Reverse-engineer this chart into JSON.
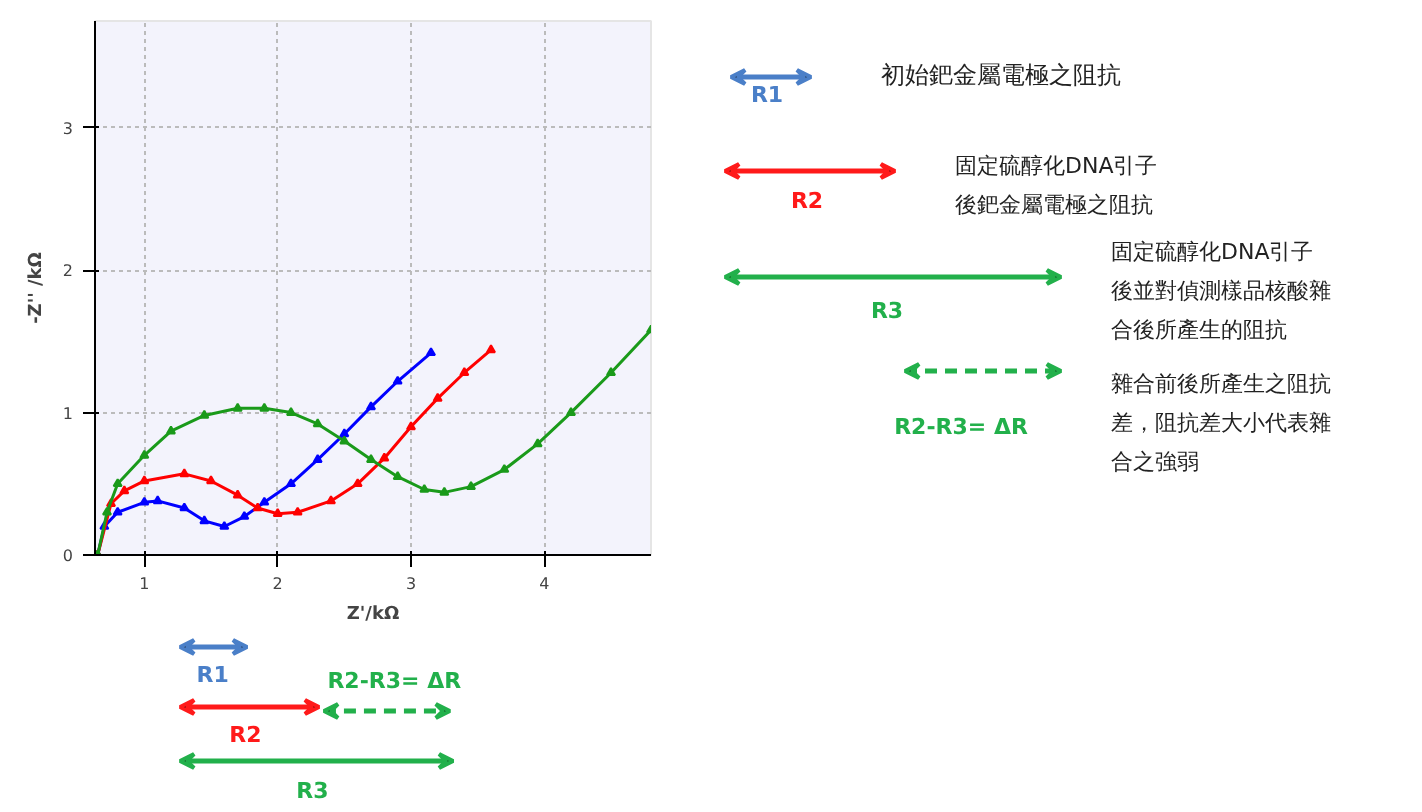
{
  "chart_data": {
    "type": "line",
    "xlabel": "Z'/kΩ",
    "ylabel": "-Z'' /kΩ",
    "xlim": [
      0.63,
      4.8
    ],
    "ylim": [
      0,
      3.75
    ],
    "xticks": [
      1,
      2,
      3,
      4
    ],
    "yticks": [
      0,
      1,
      2,
      3
    ],
    "grid": true,
    "marker": "triangle",
    "line_style": "solid",
    "series": [
      {
        "color": "#0000ff",
        "x": [
          0.65,
          0.7,
          0.8,
          1.0,
          1.1,
          1.3,
          1.45,
          1.6,
          1.75,
          1.9,
          2.1,
          2.3,
          2.5,
          2.7,
          2.9,
          3.15
        ],
        "values": [
          0,
          0.2,
          0.3,
          0.37,
          0.38,
          0.33,
          0.24,
          0.2,
          0.27,
          0.37,
          0.5,
          0.67,
          0.85,
          1.04,
          1.22,
          1.42
        ]
      },
      {
        "color": "#ff0000",
        "x": [
          0.65,
          0.75,
          0.85,
          1.0,
          1.3,
          1.5,
          1.7,
          1.85,
          2.0,
          2.15,
          2.4,
          2.6,
          2.8,
          3.0,
          3.2,
          3.4,
          3.6
        ],
        "values": [
          0,
          0.36,
          0.45,
          0.52,
          0.57,
          0.52,
          0.42,
          0.33,
          0.29,
          0.3,
          0.38,
          0.5,
          0.68,
          0.9,
          1.1,
          1.28,
          1.44
        ]
      },
      {
        "color": "#1a9a1a",
        "x": [
          0.65,
          0.72,
          0.8,
          1.0,
          1.2,
          1.45,
          1.7,
          1.9,
          2.1,
          2.3,
          2.5,
          2.7,
          2.9,
          3.1,
          3.25,
          3.45,
          3.7,
          3.95,
          4.2,
          4.5,
          4.8
        ],
        "values": [
          0,
          0.3,
          0.5,
          0.7,
          0.87,
          0.98,
          1.03,
          1.03,
          1.0,
          0.92,
          0.8,
          0.67,
          0.55,
          0.46,
          0.44,
          0.48,
          0.6,
          0.78,
          1.0,
          1.28,
          1.58
        ]
      }
    ],
    "annotations": [
      "R1",
      "初始鈀金屬電極之阻抗",
      "R2",
      "固定硫醇化DNA引子後鈀金屬電極之阻抗",
      "R3",
      "固定硫醇化DNA引子後並對偵測樣品核酸雜合後所產生的阻抗",
      "R2-R3= ΔR",
      "雜合前後所產生之阻抗差，阻抗差大小代表雜合之強弱",
      "R1",
      "R2-R3= ΔR",
      "R2",
      "R3"
    ]
  }
}
